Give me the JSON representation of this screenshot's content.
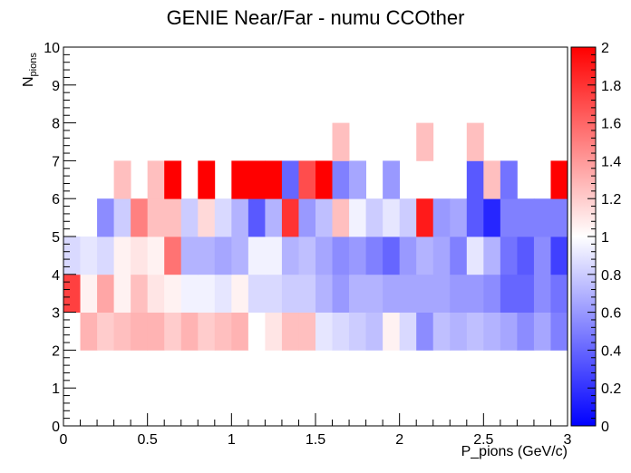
{
  "chart_data": {
    "type": "heatmap",
    "title": "GENIE Near/Far - numu CCOther",
    "xlabel": "P_pions (GeV/c)",
    "ylabel_main": "N",
    "ylabel_sub": "pions",
    "xlim": [
      0,
      3
    ],
    "ylim": [
      0,
      10
    ],
    "zlim": [
      0,
      2
    ],
    "x_bin_width": 0.1,
    "x_ticks": [
      0,
      0.5,
      1,
      1.5,
      2,
      2.5,
      3
    ],
    "x_tick_labels": [
      "0",
      "0.5",
      "1",
      "1.5",
      "2",
      "2.5",
      "3"
    ],
    "y_ticks": [
      0,
      1,
      2,
      3,
      4,
      5,
      6,
      7,
      8,
      9,
      10
    ],
    "y_tick_labels": [
      "0",
      "1",
      "2",
      "3",
      "4",
      "5",
      "6",
      "7",
      "8",
      "9",
      "10"
    ],
    "z_ticks": [
      0,
      0.2,
      0.4,
      0.6,
      0.8,
      1,
      1.2,
      1.4,
      1.6,
      1.8,
      2
    ],
    "z_tick_labels": [
      "0",
      "0.2",
      "0.4",
      "0.6",
      "0.8",
      "1",
      "1.2",
      "1.4",
      "1.6",
      "1.8",
      "2"
    ],
    "colormap": {
      "low": "#0000ff",
      "mid": "#ffffff",
      "high": "#ff0000"
    },
    "rows": [
      {
        "y_range": [
          2,
          3
        ],
        "values": [
          1.0,
          1.3,
          1.2,
          1.25,
          1.3,
          1.3,
          1.2,
          1.3,
          1.2,
          1.25,
          1.3,
          1.0,
          1.1,
          1.25,
          1.25,
          0.9,
          0.85,
          0.8,
          0.75,
          1.05,
          0.85,
          0.55,
          0.75,
          0.7,
          0.75,
          0.7,
          0.65,
          0.55,
          0.65,
          0.5
        ]
      },
      {
        "y_range": [
          3,
          4
        ],
        "values": [
          1.75,
          1.05,
          1.35,
          1.05,
          1.25,
          1.1,
          1.05,
          0.95,
          0.95,
          0.9,
          1.05,
          0.85,
          0.85,
          0.8,
          0.8,
          0.7,
          0.6,
          0.7,
          0.7,
          0.65,
          0.65,
          0.65,
          0.65,
          0.6,
          0.6,
          0.55,
          0.4,
          0.4,
          0.55,
          0.45
        ]
      },
      {
        "y_range": [
          4,
          5
        ],
        "values": [
          0.85,
          0.9,
          0.85,
          1.05,
          1.1,
          1.05,
          1.55,
          0.7,
          0.7,
          0.65,
          0.7,
          0.95,
          0.95,
          0.7,
          0.75,
          0.65,
          0.55,
          0.6,
          0.5,
          0.4,
          0.6,
          0.7,
          0.65,
          0.5,
          0.9,
          0.7,
          0.45,
          0.35,
          0.55,
          0.25
        ]
      },
      {
        "y_range": [
          5,
          6
        ],
        "values": [
          null,
          null,
          0.55,
          0.8,
          1.5,
          1.25,
          1.25,
          0.8,
          1.15,
          0.85,
          0.7,
          0.35,
          0.7,
          1.8,
          0.6,
          0.75,
          1.25,
          0.95,
          0.8,
          0.9,
          0.8,
          1.9,
          0.6,
          0.65,
          0.35,
          0.15,
          0.5,
          0.5,
          0.5,
          0.5
        ]
      },
      {
        "y_range": [
          6,
          7
        ],
        "values": [
          null,
          null,
          null,
          1.25,
          null,
          1.25,
          2.0,
          null,
          2.0,
          null,
          2.0,
          2.0,
          2.0,
          0.4,
          1.7,
          2.0,
          0.5,
          0.65,
          null,
          0.6,
          null,
          null,
          null,
          null,
          0.35,
          1.25,
          0.45,
          null,
          null,
          2.0
        ]
      },
      {
        "y_range": [
          7,
          8
        ],
        "values": [
          null,
          null,
          null,
          null,
          null,
          null,
          null,
          null,
          null,
          null,
          null,
          null,
          null,
          null,
          null,
          null,
          1.25,
          null,
          null,
          null,
          null,
          1.25,
          null,
          null,
          1.25,
          null,
          null,
          null,
          null,
          null
        ]
      }
    ]
  }
}
